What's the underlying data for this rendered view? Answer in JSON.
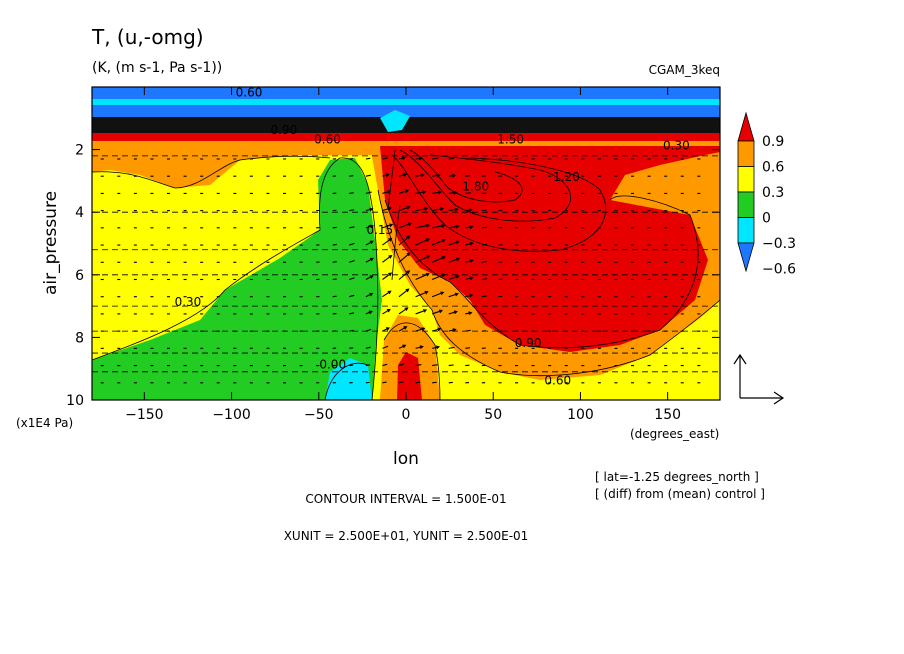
{
  "figure": {
    "title": "T, (u,-omg)",
    "units": "(K, (m s-1, Pa s-1))",
    "run_name": "CGAM_3keq",
    "contour_interval": "CONTOUR INTERVAL = 1.500E-01",
    "vector_units": "XUNIT = 2.500E+01, YUNIT = 2.500E-01",
    "slice_note": "[ lat=-1.25 degrees_north ]",
    "diff_note": "[ (diff) from (mean) control ]",
    "y_scale_note": "(x1E4 Pa)",
    "x_units_note": "(degrees_east)"
  },
  "chart_data": {
    "type": "heatmap",
    "title": "T, (u,-omg)",
    "subtitle": "(K, (m s-1, Pa s-1))",
    "xlabel": "lon",
    "ylabel": "air_pressure",
    "x_units": "degrees_east",
    "y_units": "x1E4 Pa",
    "xlim": [
      -180,
      180
    ],
    "ylim": [
      10,
      0
    ],
    "y_inverted": true,
    "x_ticks": [
      -150,
      -100,
      -50,
      0,
      50,
      100,
      150
    ],
    "x_tick_labels": [
      "−150",
      "−100",
      "−50",
      "0",
      "50",
      "100",
      "150"
    ],
    "y_ticks": [
      2,
      4,
      6,
      8,
      10
    ],
    "y_tick_labels": [
      "2",
      "4",
      "6",
      "8",
      "10"
    ],
    "contour_interval": 0.15,
    "colorbar": {
      "levels": [
        -0.6,
        -0.3,
        0,
        0.3,
        0.6,
        0.9
      ],
      "labels": [
        "−0.6",
        "−0.3",
        "0",
        "0.3",
        "0.6",
        "0.9"
      ],
      "colors": [
        "#1e78ff",
        "#00e6ff",
        "#22cc22",
        "#ffff00",
        "#ff9900",
        "#e60000"
      ]
    },
    "contour_labels": [
      {
        "text": "1.80",
        "lon": 40,
        "p": 3.3
      },
      {
        "text": "1.20",
        "lon": 92,
        "p": 3.0
      },
      {
        "text": "1.50",
        "lon": 60,
        "p": 1.8
      },
      {
        "text": "0.90",
        "lon": 70,
        "p": 8.3
      },
      {
        "text": "0.60",
        "lon": 87,
        "p": 9.5
      },
      {
        "text": "0.30",
        "lon": 155,
        "p": 2.0
      },
      {
        "text": "0.30",
        "lon": -125,
        "p": 7.0
      },
      {
        "text": "0.00",
        "lon": -42,
        "p": 9.0
      },
      {
        "text": "0.15",
        "lon": -15,
        "p": 4.7
      },
      {
        "text": "0.60",
        "lon": -45,
        "p": 1.8
      },
      {
        "text": "0.90",
        "lon": -70,
        "p": 1.5
      },
      {
        "text": "0.60",
        "lon": -90,
        "p": 0.3
      }
    ],
    "vector_field": "wind vectors (u, -omg) drawn on a regular lon-pressure grid"
  }
}
